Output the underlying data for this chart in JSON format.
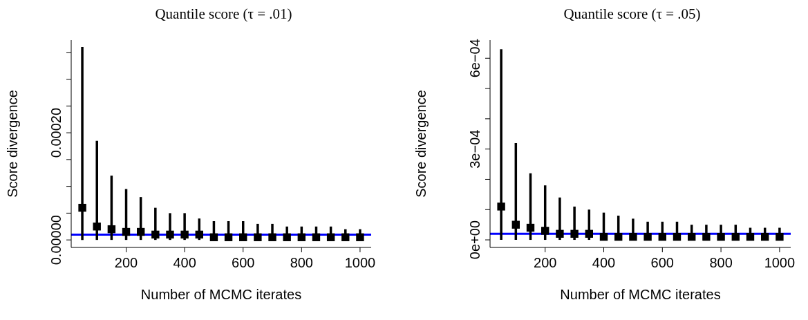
{
  "chart_data": [
    {
      "type": "scatter",
      "title": "Quantile score (τ = .01)",
      "xlabel": "Number of MCMC iterates",
      "ylabel": "Score divergence",
      "marker": "square",
      "x": [
        50,
        100,
        150,
        200,
        250,
        300,
        350,
        400,
        450,
        500,
        550,
        600,
        650,
        700,
        750,
        800,
        850,
        900,
        950,
        1000
      ],
      "series": [
        {
          "color": "#000000",
          "values": [
            6e-05,
            2.5e-05,
            2e-05,
            1.5e-05,
            1.5e-05,
            1e-05,
            1e-05,
            1e-05,
            1e-05,
            5e-06,
            5e-06,
            5e-06,
            5e-06,
            5e-06,
            5e-06,
            5e-06,
            5e-06,
            5e-06,
            5e-06,
            5e-06
          ],
          "errors": [
            [
              0,
              0.00036
            ],
            [
              0,
              0.000185
            ],
            [
              0,
              0.00012
            ],
            [
              0,
              9.5e-05
            ],
            [
              0,
              8e-05
            ],
            [
              0,
              6e-05
            ],
            [
              0,
              5e-05
            ],
            [
              0,
              5e-05
            ],
            [
              0,
              4e-05
            ],
            [
              0,
              3.5e-05
            ],
            [
              0,
              3.5e-05
            ],
            [
              0,
              3.5e-05
            ],
            [
              0,
              3e-05
            ],
            [
              0,
              3e-05
            ],
            [
              0,
              2.5e-05
            ],
            [
              0,
              2.5e-05
            ],
            [
              0,
              2.5e-05
            ],
            [
              0,
              2.5e-05
            ],
            [
              0,
              2e-05
            ],
            [
              0,
              2e-05
            ]
          ]
        }
      ],
      "ref_lines": [
        {
          "axis": "y",
          "value": 1e-05,
          "color": "#0000ff"
        }
      ],
      "xlim": [
        12,
        1038
      ],
      "xticks": [
        200,
        400,
        600,
        800,
        1000
      ],
      "ylim": [
        -1.4e-05,
        0.000373
      ],
      "yticks": [
        {
          "value": 0,
          "label": "0.00000"
        },
        {
          "value": 5e-05,
          "label": null
        },
        {
          "value": 0.0001,
          "label": null
        },
        {
          "value": 0.00015,
          "label": null
        },
        {
          "value": 0.0002,
          "label": "0.00020"
        },
        {
          "value": 0.00025,
          "label": null
        },
        {
          "value": 0.0003,
          "label": null
        },
        {
          "value": 0.00035,
          "label": null
        }
      ]
    },
    {
      "type": "scatter",
      "title": "Quantile score (τ = .05)",
      "xlabel": "Number of MCMC iterates",
      "ylabel": "Score divergence",
      "marker": "square",
      "x": [
        50,
        100,
        150,
        200,
        250,
        300,
        350,
        400,
        450,
        500,
        550,
        600,
        650,
        700,
        750,
        800,
        850,
        900,
        950,
        1000
      ],
      "series": [
        {
          "color": "#000000",
          "values": [
            0.00011,
            5e-05,
            4e-05,
            3e-05,
            2e-05,
            2e-05,
            2e-05,
            1e-05,
            1e-05,
            1e-05,
            1e-05,
            1e-05,
            1e-05,
            1e-05,
            1e-05,
            1e-05,
            1e-05,
            1e-05,
            1e-05,
            1e-05
          ],
          "errors": [
            [
              0,
              0.00063
            ],
            [
              0,
              0.00032
            ],
            [
              0,
              0.00022
            ],
            [
              0,
              0.00018
            ],
            [
              0,
              0.00014
            ],
            [
              0,
              0.00011
            ],
            [
              0,
              0.0001
            ],
            [
              0,
              9e-05
            ],
            [
              0,
              8e-05
            ],
            [
              0,
              7e-05
            ],
            [
              0,
              6e-05
            ],
            [
              0,
              6e-05
            ],
            [
              0,
              6e-05
            ],
            [
              0,
              5e-05
            ],
            [
              0,
              5e-05
            ],
            [
              0,
              5e-05
            ],
            [
              0,
              5e-05
            ],
            [
              0,
              4e-05
            ],
            [
              0,
              4e-05
            ],
            [
              0,
              4e-05
            ]
          ]
        }
      ],
      "ref_lines": [
        {
          "axis": "y",
          "value": 2e-05,
          "color": "#0000ff"
        }
      ],
      "xlim": [
        12,
        1038
      ],
      "xticks": [
        200,
        400,
        600,
        800,
        1000
      ],
      "ylim": [
        -2.5e-05,
        0.00066
      ],
      "yticks": [
        {
          "value": 0,
          "label": "0e+00"
        },
        {
          "value": 0.0001,
          "label": null
        },
        {
          "value": 0.0002,
          "label": null
        },
        {
          "value": 0.0003,
          "label": "3e−04"
        },
        {
          "value": 0.0004,
          "label": null
        },
        {
          "value": 0.0005,
          "label": null
        },
        {
          "value": 0.0006,
          "label": "6e−04"
        }
      ]
    }
  ]
}
